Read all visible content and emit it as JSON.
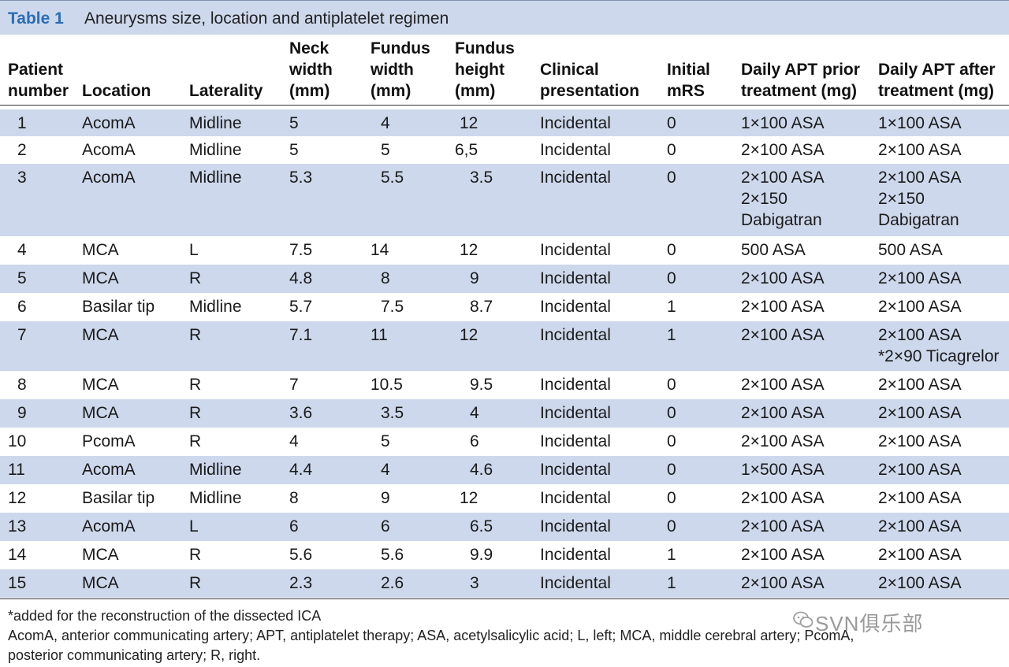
{
  "title": {
    "label": "Table 1",
    "text": "Aneurysms size, location and antiplatelet regimen"
  },
  "headers": [
    "Patient\nnumber",
    "Location",
    "Laterality",
    "Neck\nwidth\n(mm)",
    "Fundus\nwidth\n(mm)",
    "Fundus\nheight\n(mm)",
    "Clinical\npresentation",
    "Initial\nmRS",
    "Daily APT prior\ntreatment (mg)",
    "Daily APT after\ntreatment (mg)"
  ],
  "rows": [
    [
      "1",
      "AcomA",
      "Midline",
      "5",
      "4",
      "12",
      "Incidental",
      "0",
      "1×100 ASA",
      "1×100 ASA"
    ],
    [
      "2",
      "AcomA",
      "Midline",
      "5",
      "5",
      "6,5",
      "Incidental",
      "0",
      "2×100 ASA",
      "2×100 ASA"
    ],
    [
      "3",
      "AcomA",
      "Midline",
      "5.3",
      "5.5",
      "3.5",
      "Incidental",
      "0",
      "2×100 ASA\n2×150\nDabigatran",
      "2×100 ASA\n2×150\nDabigatran"
    ],
    [
      "4",
      "MCA",
      "L",
      "7.5",
      "14",
      "12",
      "Incidental",
      "0",
      "500 ASA",
      "500 ASA"
    ],
    [
      "5",
      "MCA",
      "R",
      "4.8",
      "8",
      "9",
      "Incidental",
      "0",
      "2×100 ASA",
      "2×100 ASA"
    ],
    [
      "6",
      "Basilar tip",
      "Midline",
      "5.7",
      "7.5",
      "8.7",
      "Incidental",
      "1",
      "2×100 ASA",
      "2×100 ASA"
    ],
    [
      "7",
      "MCA",
      "R",
      "7.1",
      "11",
      "12",
      "Incidental",
      "1",
      "2×100 ASA",
      "2×100 ASA\n*2×90 Ticagrelor"
    ],
    [
      "8",
      "MCA",
      "R",
      "7",
      "10.5",
      "9.5",
      "Incidental",
      "0",
      "2×100 ASA",
      "2×100 ASA"
    ],
    [
      "9",
      "MCA",
      "R",
      "3.6",
      "3.5",
      "4",
      "Incidental",
      "0",
      "2×100 ASA",
      "2×100 ASA"
    ],
    [
      "10",
      "PcomA",
      "R",
      "4",
      "5",
      "6",
      "Incidental",
      "0",
      "2×100 ASA",
      "2×100 ASA"
    ],
    [
      "11",
      "AcomA",
      "Midline",
      "4.4",
      "4",
      "4.6",
      "Incidental",
      "0",
      "1×500 ASA",
      "2×100 ASA"
    ],
    [
      "12",
      "Basilar tip",
      "Midline",
      "8",
      "9",
      "12",
      "Incidental",
      "0",
      "2×100 ASA",
      "2×100 ASA"
    ],
    [
      "13",
      "AcomA",
      "L",
      "6",
      "6",
      "6.5",
      "Incidental",
      "0",
      "2×100 ASA",
      "2×100 ASA"
    ],
    [
      "14",
      "MCA",
      "R",
      "5.6",
      "5.6",
      "9.9",
      "Incidental",
      "1",
      "2×100 ASA",
      "2×100 ASA"
    ],
    [
      "15",
      "MCA",
      "R",
      "2.3",
      "2.6",
      "3",
      "Incidental",
      "1",
      "2×100 ASA",
      "2×100 ASA"
    ]
  ],
  "footnotes": [
    "*added for the reconstruction of the dissected ICA",
    "AcomA, anterior communicating artery; APT, antiplatelet therapy; ASA, acetylsalicylic acid; L, left; MCA, middle cerebral artery; PcomA,",
    "posterior communicating artery; R, right."
  ],
  "watermark": "SVN俱乐部",
  "colors": {
    "shade": "#cdd8ec",
    "title_label": "#2a6db5"
  }
}
